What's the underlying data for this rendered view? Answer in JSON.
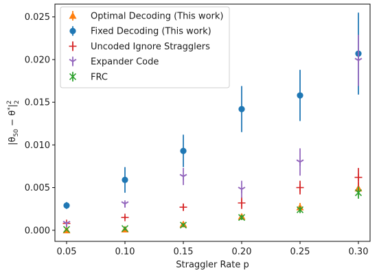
{
  "chart_data": {
    "type": "scatter",
    "title": "",
    "xlabel": "Straggler Rate p",
    "ylabel": "|θ_{50} − θ^*|_2^2",
    "xlim": [
      0.04,
      0.31
    ],
    "ylim": [
      -0.0013,
      0.0265
    ],
    "x": [
      0.05,
      0.1,
      0.15,
      0.2,
      0.25,
      0.3
    ],
    "x_tick_labels": [
      "0.05",
      "0.10",
      "0.15",
      "0.20",
      "0.25",
      "0.30"
    ],
    "y_ticks": [
      0.0,
      0.005,
      0.01,
      0.015,
      0.02,
      0.025
    ],
    "y_tick_labels": [
      "0.000",
      "0.005",
      "0.010",
      "0.015",
      "0.020",
      "0.025"
    ],
    "grid": false,
    "legend_position": "top-left",
    "series": [
      {
        "name": "Optimal Decoding (This work)",
        "color": "#ff7f0e",
        "marker": "triangle-up",
        "values": [
          0.0,
          0.0001,
          0.0007,
          0.0016,
          0.0027,
          0.0049
        ],
        "errors": [
          0.0002,
          0.0002,
          0.0003,
          0.0003,
          0.0005,
          0.0007
        ]
      },
      {
        "name": "Fixed Decoding (This work)",
        "color": "#1f77b4",
        "marker": "circle",
        "values": [
          0.0029,
          0.0059,
          0.0093,
          0.0142,
          0.0158,
          0.0207
        ],
        "errors": [
          0.0004,
          0.0015,
          0.0019,
          0.0027,
          0.003,
          0.0048
        ]
      },
      {
        "name": "Uncoded Ignore Stragglers",
        "color": "#d62728",
        "marker": "plus",
        "values": [
          0.0008,
          0.0015,
          0.0027,
          0.0032,
          0.005,
          0.0062
        ],
        "errors": [
          0.0002,
          0.0002,
          0.0004,
          0.0007,
          0.0008,
          0.0011
        ]
      },
      {
        "name": "Expander Code",
        "color": "#9467bd",
        "marker": "tri-down",
        "values": [
          0.0008,
          0.0031,
          0.0063,
          0.0048,
          0.008,
          0.0199
        ],
        "errors": [
          0.0002,
          0.0004,
          0.001,
          0.001,
          0.0016,
          0.003
        ]
      },
      {
        "name": "FRC",
        "color": "#2ca02c",
        "marker": "x",
        "values": [
          0.0001,
          0.0002,
          0.0006,
          0.0015,
          0.0024,
          0.0044
        ],
        "errors": [
          0.0001,
          0.0002,
          0.0002,
          0.0003,
          0.0004,
          0.0007
        ]
      }
    ]
  }
}
